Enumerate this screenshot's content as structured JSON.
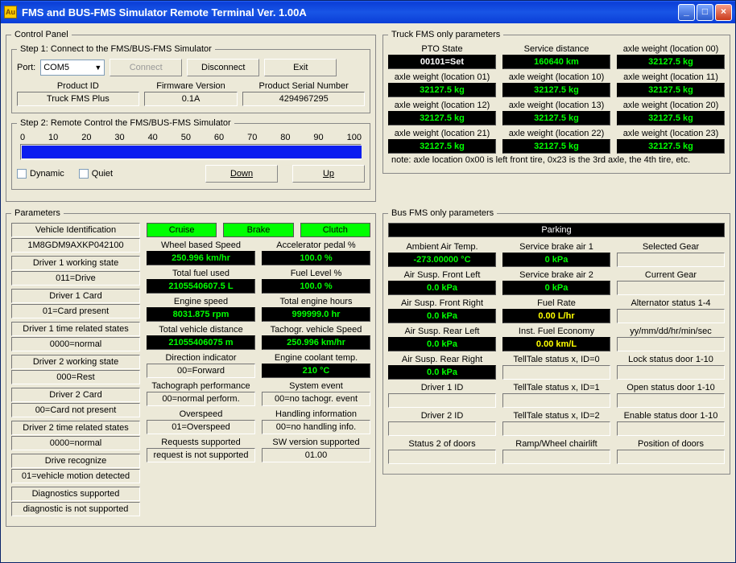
{
  "window": {
    "title": "FMS and BUS-FMS Simulator Remote Terminal Ver. 1.00A",
    "icon_label": "Au"
  },
  "control_panel": {
    "legend": "Control Panel",
    "step1_legend": "Step 1: Connect to the FMS/BUS-FMS Simulator",
    "port_label": "Port:",
    "port_value": "COM5",
    "connect_label": "Connect",
    "disconnect_label": "Disconnect",
    "exit_label": "Exit",
    "product_id_label": "Product ID",
    "product_id_value": "Truck FMS Plus",
    "firmware_label": "Firmware Version",
    "firmware_value": "0.1A",
    "serial_label": "Product Serial Number",
    "serial_value": "4294967295",
    "step2_legend": "Step 2: Remote Control the FMS/BUS-FMS Simulator",
    "slider_ticks": [
      "0",
      "10",
      "20",
      "30",
      "40",
      "50",
      "60",
      "70",
      "80",
      "90",
      "100"
    ],
    "slider_percent": 100,
    "dynamic_label": "Dynamic",
    "quiet_label": "Quiet",
    "down_label": "Down",
    "up_label": "Up",
    "slider_fill_color": "#0a1df0"
  },
  "truck_fms": {
    "legend": "Truck FMS only parameters",
    "note": "note: axle location 0x00 is left front tire, 0x23 is the 3rd axle, the 4th tire, etc.",
    "cells": [
      {
        "label": "PTO State",
        "value": "00101=Set",
        "style": "black"
      },
      {
        "label": "Service distance",
        "value": "160640 km",
        "style": "green"
      },
      {
        "label": "axle weight (location 00)",
        "value": "32127.5 kg",
        "style": "green"
      },
      {
        "label": "axle weight (location 01)",
        "value": "32127.5 kg",
        "style": "green"
      },
      {
        "label": "axle weight (location 10)",
        "value": "32127.5 kg",
        "style": "green"
      },
      {
        "label": "axle weight (location 11)",
        "value": "32127.5 kg",
        "style": "green"
      },
      {
        "label": "axle weight (location 12)",
        "value": "32127.5 kg",
        "style": "green"
      },
      {
        "label": "axle weight (location 13)",
        "value": "32127.5 kg",
        "style": "green"
      },
      {
        "label": "axle weight (location 20)",
        "value": "32127.5 kg",
        "style": "green"
      },
      {
        "label": "axle weight (location 21)",
        "value": "32127.5 kg",
        "style": "green"
      },
      {
        "label": "axle weight (location 22)",
        "value": "32127.5 kg",
        "style": "green"
      },
      {
        "label": "axle weight (location 23)",
        "value": "32127.5 kg",
        "style": "green"
      }
    ]
  },
  "parameters": {
    "legend": "Parameters",
    "highlights": {
      "cruise": "Cruise",
      "brake": "Brake",
      "clutch": "Clutch"
    },
    "left_col": [
      {
        "label": "Vehicle Identification",
        "value": "1M8GDM9AXKP042100"
      },
      {
        "label": "Driver 1 working state",
        "value": "011=Drive"
      },
      {
        "label": "Driver 1 Card",
        "value": "01=Card present"
      },
      {
        "label": "Driver 1 time related states",
        "value": "0000=normal"
      },
      {
        "label": "Driver 2 working state",
        "value": "000=Rest"
      },
      {
        "label": "Driver 2 Card",
        "value": "00=Card not present"
      },
      {
        "label": "Driver 2 time related states",
        "value": "0000=normal"
      },
      {
        "label": "Drive recognize",
        "value": "01=vehicle motion detected"
      },
      {
        "label": "Diagnostics supported",
        "value": "diagnostic is not supported"
      }
    ],
    "mid_col": [
      {
        "label": "Wheel based Speed",
        "value": "250.996 km/hr",
        "style": "green"
      },
      {
        "label": "Total fuel used",
        "value": "2105540607.5 L",
        "style": "green"
      },
      {
        "label": "Engine speed",
        "value": "8031.875 rpm",
        "style": "green"
      },
      {
        "label": "Total vehicle distance",
        "value": "21055406075 m",
        "style": "green"
      },
      {
        "label": "Direction indicator",
        "value": "00=Forward",
        "style": "sunken"
      },
      {
        "label": "Tachograph performance",
        "value": "00=normal perform.",
        "style": "sunken"
      },
      {
        "label": "Overspeed",
        "value": "01=Overspeed",
        "style": "sunken"
      },
      {
        "label": "Requests supported",
        "value": "request is not supported",
        "style": "sunken"
      }
    ],
    "right_col": [
      {
        "label": "Accelerator pedal %",
        "value": "100.0 %",
        "style": "green"
      },
      {
        "label": "Fuel Level %",
        "value": "100.0 %",
        "style": "green"
      },
      {
        "label": "Total engine hours",
        "value": "999999.0 hr",
        "style": "green"
      },
      {
        "label": "Tachogr. vehicle Speed",
        "value": "250.996 km/hr",
        "style": "green"
      },
      {
        "label": "Engine coolant temp.",
        "value": "210 °C",
        "style": "green"
      },
      {
        "label": "System event",
        "value": "00=no tachogr. event",
        "style": "sunken"
      },
      {
        "label": "Handling information",
        "value": "00=no handling info.",
        "style": "sunken"
      },
      {
        "label": "SW version supported",
        "value": "01.00",
        "style": "sunken"
      }
    ]
  },
  "bus_fms": {
    "legend": "Bus FMS only parameters",
    "header": {
      "label": "Parking",
      "style": "black"
    },
    "cols": [
      [
        {
          "label": "Ambient Air Temp.",
          "value": "-273.00000 °C",
          "style": "green"
        },
        {
          "label": "Air Susp. Front Left",
          "value": "0.0 kPa",
          "style": "green"
        },
        {
          "label": "Air Susp. Front Right",
          "value": "0.0 kPa",
          "style": "green"
        },
        {
          "label": "Air Susp. Rear Left",
          "value": "0.0 kPa",
          "style": "green"
        },
        {
          "label": "Air Susp. Rear Right",
          "value": "0.0 kPa",
          "style": "green"
        },
        {
          "label": "Driver 1 ID",
          "value": "",
          "style": "sunken"
        },
        {
          "label": "Driver 2 ID",
          "value": "",
          "style": "sunken"
        },
        {
          "label": "Status 2 of doors",
          "value": "",
          "style": "sunken"
        }
      ],
      [
        {
          "label": "Service brake air 1",
          "value": "0 kPa",
          "style": "green"
        },
        {
          "label": "Service brake air 2",
          "value": "0 kPa",
          "style": "green"
        },
        {
          "label": "Fuel Rate",
          "value": "0.00 L/hr",
          "style": "yellow"
        },
        {
          "label": "Inst. Fuel Economy",
          "value": "0.00 km/L",
          "style": "yellow"
        },
        {
          "label": "TellTale status x, ID=0",
          "value": "",
          "style": "sunken"
        },
        {
          "label": "TellTale status x, ID=1",
          "value": "",
          "style": "sunken"
        },
        {
          "label": "TellTale status x, ID=2",
          "value": "",
          "style": "sunken"
        },
        {
          "label": "Ramp/Wheel chairlift",
          "value": "",
          "style": "sunken"
        }
      ],
      [
        {
          "label": "Selected Gear",
          "value": "",
          "style": "sunken"
        },
        {
          "label": "Current Gear",
          "value": "",
          "style": "sunken"
        },
        {
          "label": "Alternator status 1-4",
          "value": "",
          "style": "sunken"
        },
        {
          "label": "yy/mm/dd/hr/min/sec",
          "value": "",
          "style": "sunken"
        },
        {
          "label": "Lock status door 1-10",
          "value": "",
          "style": "sunken"
        },
        {
          "label": "Open status door 1-10",
          "value": "",
          "style": "sunken"
        },
        {
          "label": "Enable status door 1-10",
          "value": "",
          "style": "sunken"
        },
        {
          "label": "Position of doors",
          "value": "",
          "style": "sunken"
        }
      ]
    ]
  },
  "colors": {
    "green_text": "#00ff00",
    "yellow_text": "#ffff00",
    "highlight_bg": "#00ff00",
    "background": "#ece9d8"
  }
}
